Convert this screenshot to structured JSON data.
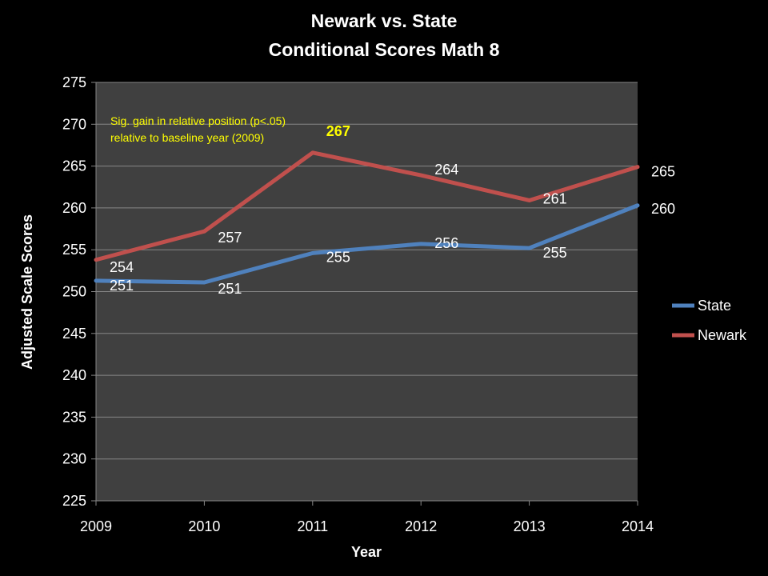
{
  "chart_data": {
    "type": "line",
    "title": "Newark vs. State",
    "subtitle": "Conditional Scores Math 8",
    "xlabel": "Year",
    "ylabel": "Adjusted Scale Scores",
    "categories": [
      "2009",
      "2010",
      "2011",
      "2012",
      "2013",
      "2014"
    ],
    "ylim": [
      225,
      275
    ],
    "ytick_step": 5,
    "grid": true,
    "legend_position": "right",
    "series": [
      {
        "name": "State",
        "color": "#4f81bd",
        "values": [
          251.3,
          251.1,
          254.6,
          255.7,
          255.2,
          260.3
        ],
        "labels": [
          "251",
          "251",
          "255",
          "256",
          "255",
          "260"
        ]
      },
      {
        "name": "Newark",
        "color": "#c0504d",
        "values": [
          253.8,
          257.2,
          266.6,
          263.9,
          260.9,
          264.9
        ],
        "labels": [
          "254",
          "257",
          "267",
          "264",
          "261",
          "265"
        ],
        "highlight_index": 2
      }
    ],
    "annotation": {
      "lines": [
        "Sig. gain in relative position (p<.05)",
        "relative to baseline year (2009)"
      ],
      "color": "#ffff00"
    }
  }
}
